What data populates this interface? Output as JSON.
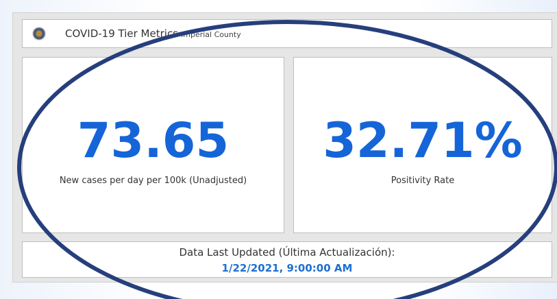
{
  "header": {
    "title": "COVID-19 Tier Metrics",
    "subtitle": "Imperial County"
  },
  "indicators": [
    {
      "value": "73.65",
      "label": "New cases per day per 100k (Unadjusted)"
    },
    {
      "value": "32.71%",
      "label": "Positivity Rate"
    }
  ],
  "footer": {
    "label": "Data Last Updated (Última Actualización):",
    "date": "1/22/2021, 9:00:00 AM"
  }
}
